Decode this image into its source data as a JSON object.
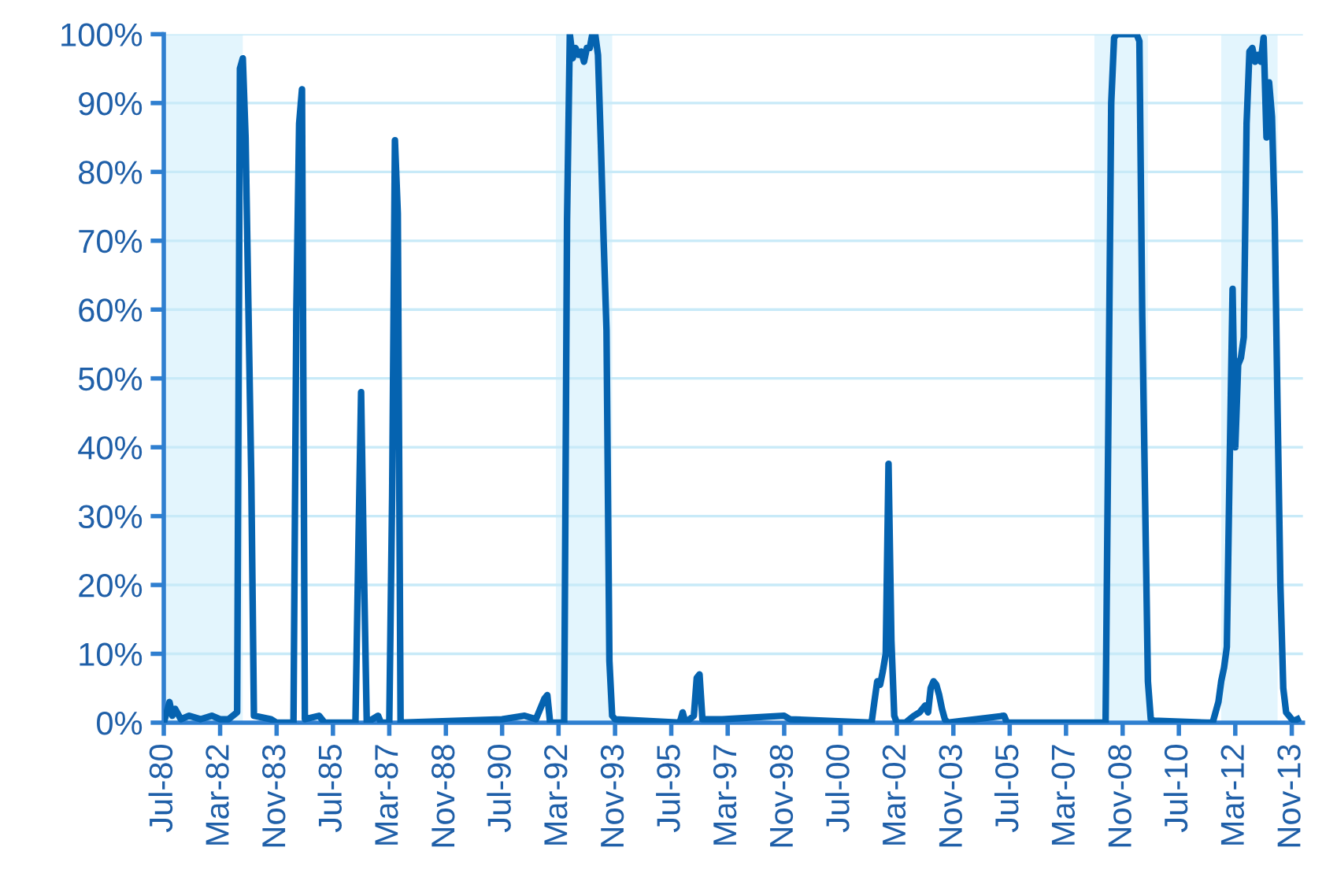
{
  "chart_data": {
    "type": "line",
    "x": [
      "1980-07",
      "1980-09",
      "1980-10",
      "1980-11",
      "1981-01",
      "1981-04",
      "1981-08",
      "1981-12",
      "1982-03",
      "1982-06",
      "1982-09",
      "1982-10",
      "1982-11",
      "1982-12",
      "1983-01",
      "1983-02",
      "1983-03",
      "1983-09",
      "1983-11",
      "1984-05",
      "1984-06",
      "1984-07",
      "1984-08",
      "1984-09",
      "1985-02",
      "1985-04",
      "1986-03",
      "1986-04",
      "1986-05",
      "1986-06",
      "1986-07",
      "1986-11",
      "1986-12",
      "1987-03",
      "1987-04",
      "1987-05",
      "1987-06",
      "1987-07",
      "1990-07",
      "1991-03",
      "1991-07",
      "1991-10",
      "1991-11",
      "1991-12",
      "1992-05",
      "1992-06",
      "1992-07",
      "1992-08",
      "1992-09",
      "1992-10",
      "1992-11",
      "1992-12",
      "1993-01",
      "1993-02",
      "1993-03",
      "1993-04",
      "1993-05",
      "1993-06",
      "1993-07",
      "1993-08",
      "1993-09",
      "1993-10",
      "1993-11",
      "1995-10",
      "1995-11",
      "1995-12",
      "1996-03",
      "1996-04",
      "1996-05",
      "1996-06",
      "1997-01",
      "1998-11",
      "1999-01",
      "2001-06",
      "2001-07",
      "2001-08",
      "2001-09",
      "2001-10",
      "2001-11",
      "2001-12",
      "2002-01",
      "2002-02",
      "2002-03",
      "2002-06",
      "2002-09",
      "2002-11",
      "2003-01",
      "2003-02",
      "2003-03",
      "2003-04",
      "2003-05",
      "2003-06",
      "2003-07",
      "2003-08",
      "2003-09",
      "2005-05",
      "2005-06",
      "2008-05",
      "2008-06",
      "2008-07",
      "2008-08",
      "2008-09",
      "2009-04",
      "2009-05",
      "2009-06",
      "2009-07",
      "2009-08",
      "2009-09",
      "2009-10",
      "2011-05",
      "2011-07",
      "2011-09",
      "2011-10",
      "2011-11",
      "2011-12",
      "2012-01",
      "2012-02",
      "2012-03",
      "2012-04",
      "2012-05",
      "2012-06",
      "2012-07",
      "2012-08",
      "2012-09",
      "2012-10",
      "2012-11",
      "2012-12",
      "2013-01",
      "2013-02",
      "2013-03",
      "2013-04",
      "2013-05",
      "2013-06",
      "2013-07",
      "2013-08",
      "2013-09",
      "2013-10",
      "2013-11",
      "2013-12",
      "2014-01"
    ],
    "series": [
      {
        "color": "#0563b0",
        "values": [
          0,
          3,
          1,
          2,
          0.5,
          1,
          0.5,
          1,
          0.5,
          0.5,
          1.5,
          95,
          96.5,
          85,
          60,
          35,
          1,
          0.5,
          0,
          0,
          60,
          87,
          92,
          0.5,
          1,
          0,
          0,
          25,
          48,
          22,
          0,
          1,
          0,
          0,
          33,
          84.6,
          74,
          0,
          0.5,
          1,
          0.5,
          3.5,
          4,
          0,
          0,
          73,
          100,
          96.5,
          98,
          97,
          97.5,
          96,
          98,
          98,
          100,
          100,
          97,
          84,
          70,
          57,
          9,
          1,
          0.5,
          0,
          1.5,
          0,
          1,
          6.5,
          7,
          0.5,
          0.5,
          1,
          0.5,
          0,
          3,
          6,
          5.5,
          7.5,
          10,
          37.6,
          12,
          1,
          0,
          0,
          1,
          1.5,
          2.5,
          1.5,
          5,
          6,
          5.5,
          4,
          2,
          0.5,
          0,
          1,
          0,
          0,
          45,
          90,
          99.5,
          100,
          100,
          99,
          59,
          33,
          6,
          0.5,
          0.3,
          0,
          0,
          3,
          6,
          8,
          11,
          38,
          63,
          40,
          52,
          53,
          56,
          87,
          97.5,
          98,
          96,
          97,
          96,
          99.5,
          85,
          93,
          88,
          73,
          45,
          20,
          5,
          1.5,
          1,
          0.5,
          0.3,
          0.5
        ]
      }
    ],
    "xlim": [
      "1980-07",
      "2014-03"
    ],
    "xticks": [
      {
        "value": "1980-07",
        "label": "Jul-80"
      },
      {
        "value": "1982-03",
        "label": "Mar-82"
      },
      {
        "value": "1983-11",
        "label": "Nov-83"
      },
      {
        "value": "1985-07",
        "label": "Jul-85"
      },
      {
        "value": "1987-03",
        "label": "Mar-87"
      },
      {
        "value": "1988-11",
        "label": "Nov-88"
      },
      {
        "value": "1990-07",
        "label": "Jul-90"
      },
      {
        "value": "1992-03",
        "label": "Mar-92"
      },
      {
        "value": "1993-11",
        "label": "Nov-93"
      },
      {
        "value": "1995-07",
        "label": "Jul-95"
      },
      {
        "value": "1997-03",
        "label": "Mar-97"
      },
      {
        "value": "1998-11",
        "label": "Nov-98"
      },
      {
        "value": "2000-07",
        "label": "Jul-00"
      },
      {
        "value": "2002-03",
        "label": "Mar-02"
      },
      {
        "value": "2003-11",
        "label": "Nov-03"
      },
      {
        "value": "2005-07",
        "label": "Jul-05"
      },
      {
        "value": "2007-03",
        "label": "Mar-07"
      },
      {
        "value": "2008-11",
        "label": "Nov-08"
      },
      {
        "value": "2010-07",
        "label": "Jul-10"
      },
      {
        "value": "2012-03",
        "label": "Mar-12"
      },
      {
        "value": "2013-11",
        "label": "Nov-13"
      }
    ],
    "ylim": [
      0,
      100
    ],
    "yticks": [
      {
        "value": 0,
        "label": "0%"
      },
      {
        "value": 10,
        "label": "10%"
      },
      {
        "value": 20,
        "label": "20%"
      },
      {
        "value": 30,
        "label": "30%"
      },
      {
        "value": 40,
        "label": "40%"
      },
      {
        "value": 50,
        "label": "50%"
      },
      {
        "value": 60,
        "label": "60%"
      },
      {
        "value": 70,
        "label": "70%"
      },
      {
        "value": 80,
        "label": "80%"
      },
      {
        "value": 90,
        "label": "90%"
      },
      {
        "value": 100,
        "label": "100%"
      }
    ],
    "bands": [
      {
        "axis": "x",
        "from": "1980-07",
        "to": "1982-11",
        "color": "#e3f5fd"
      },
      {
        "axis": "x",
        "from": "1992-02",
        "to": "1993-10",
        "color": "#e3f5fd"
      },
      {
        "axis": "x",
        "from": "2008-01",
        "to": "2009-08",
        "color": "#e3f5fd"
      },
      {
        "axis": "x",
        "from": "2011-10",
        "to": "2013-06",
        "color": "#e3f5fd"
      }
    ],
    "grid": "y",
    "legend": false,
    "marker": "none",
    "line_style": "solid"
  }
}
